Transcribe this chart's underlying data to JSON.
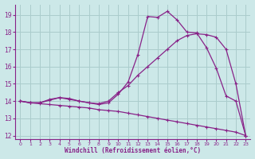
{
  "xlabel": "Windchill (Refroidissement éolien,°C)",
  "bg_color": "#cce8e8",
  "grid_color": "#aacccc",
  "line_color": "#882288",
  "xlim": [
    -0.5,
    23.5
  ],
  "ylim": [
    11.8,
    19.6
  ],
  "xticks": [
    0,
    1,
    2,
    3,
    4,
    5,
    6,
    7,
    8,
    9,
    10,
    11,
    12,
    13,
    14,
    15,
    16,
    17,
    18,
    19,
    20,
    21,
    22,
    23
  ],
  "yticks": [
    12,
    13,
    14,
    15,
    16,
    17,
    18,
    19
  ],
  "line1_x": [
    0,
    1,
    2,
    3,
    4,
    5,
    6,
    7,
    8,
    9,
    10,
    11,
    12,
    13,
    14,
    15,
    16,
    17,
    18,
    19,
    20,
    21,
    22,
    23
  ],
  "line1_y": [
    14.0,
    13.9,
    13.9,
    14.1,
    14.2,
    14.1,
    14.0,
    13.9,
    13.8,
    13.9,
    14.4,
    15.1,
    16.7,
    18.9,
    18.85,
    19.2,
    18.7,
    18.0,
    17.95,
    17.1,
    15.9,
    14.3,
    14.0,
    12.0
  ],
  "line2_x": [
    0,
    1,
    2,
    3,
    4,
    5,
    6,
    7,
    8,
    9,
    10,
    11,
    12,
    13,
    14,
    15,
    16,
    17,
    18,
    19,
    20,
    21,
    22,
    23
  ],
  "line2_y": [
    14.0,
    13.9,
    13.9,
    14.05,
    14.2,
    14.15,
    14.0,
    13.9,
    13.85,
    14.0,
    14.5,
    14.9,
    15.5,
    16.0,
    16.5,
    17.0,
    17.5,
    17.8,
    17.9,
    17.85,
    17.7,
    17.0,
    15.0,
    12.0
  ],
  "line3_x": [
    0,
    1,
    2,
    3,
    4,
    5,
    6,
    7,
    8,
    9,
    10,
    11,
    12,
    13,
    14,
    15,
    16,
    17,
    18,
    19,
    20,
    21,
    22,
    23
  ],
  "line3_y": [
    14.0,
    13.9,
    13.85,
    13.8,
    13.75,
    13.7,
    13.65,
    13.6,
    13.5,
    13.45,
    13.4,
    13.3,
    13.2,
    13.1,
    13.0,
    12.9,
    12.8,
    12.7,
    12.6,
    12.5,
    12.4,
    12.3,
    12.2,
    12.0
  ]
}
